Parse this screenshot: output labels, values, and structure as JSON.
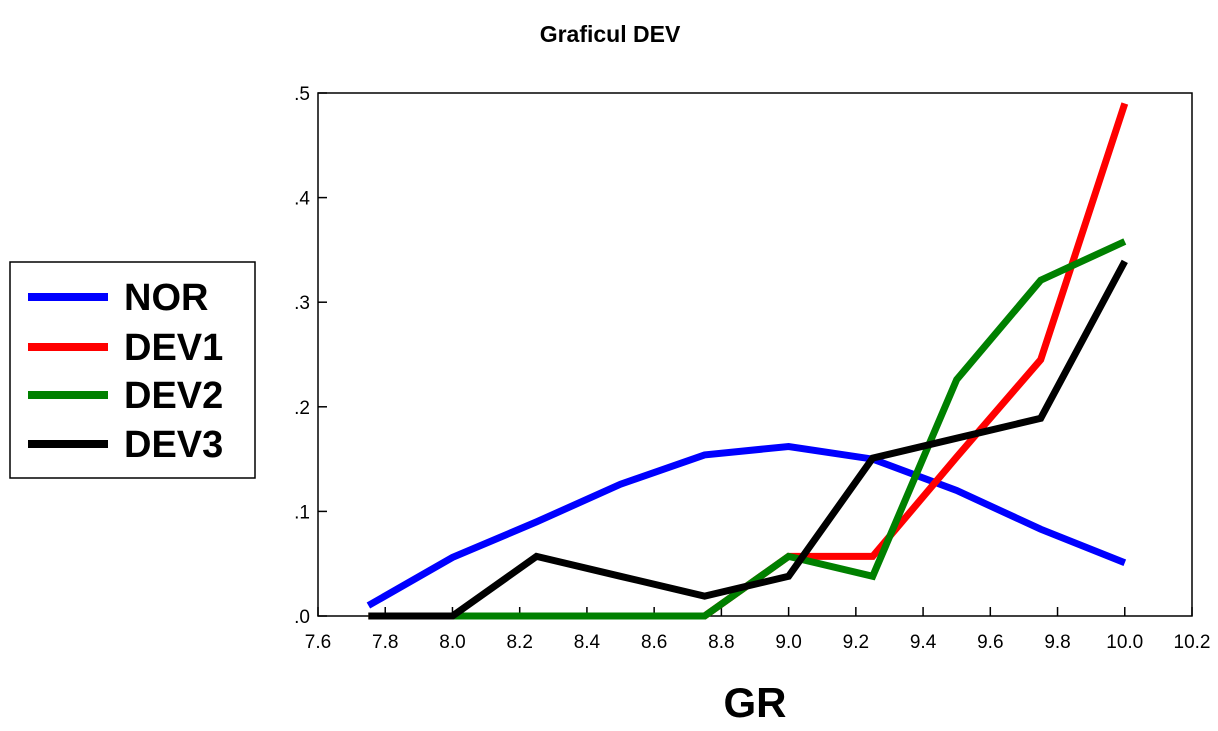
{
  "chart_data": {
    "type": "line",
    "title": "Graficul DEV",
    "xlabel": "GR",
    "ylabel": "",
    "xlim": [
      7.6,
      10.2
    ],
    "ylim": [
      0.0,
      0.5
    ],
    "x_ticks": [
      7.6,
      7.8,
      8.0,
      8.2,
      8.4,
      8.6,
      8.8,
      9.0,
      9.2,
      9.4,
      9.6,
      9.8,
      10.0,
      10.2
    ],
    "x_tick_labels": [
      "7.6",
      "7.8",
      "8.0",
      "8.2",
      "8.4",
      "8.6",
      "8.8",
      "9.0",
      "9.2",
      "9.4",
      "9.6",
      "9.8",
      "10.0",
      "10.2"
    ],
    "y_ticks": [
      0.0,
      0.1,
      0.2,
      0.3,
      0.4,
      0.5
    ],
    "y_tick_labels": [
      ".0",
      ".1",
      ".2",
      ".3",
      ".4",
      ".5"
    ],
    "grid": false,
    "legend_position": "left",
    "x": [
      7.75,
      8.0,
      8.25,
      8.5,
      8.75,
      9.0,
      9.25,
      9.5,
      9.75,
      10.0
    ],
    "series": [
      {
        "name": "NOR",
        "color": "#0000ff",
        "values": [
          0.01,
          0.056,
          0.09,
          0.126,
          0.154,
          0.162,
          0.15,
          0.12,
          0.083,
          0.051
        ]
      },
      {
        "name": "DEV1",
        "color": "#ff0000",
        "values": [
          0.0,
          0.0,
          0.0,
          0.0,
          0.0,
          0.057,
          0.057,
          0.152,
          0.245,
          0.49
        ]
      },
      {
        "name": "DEV2",
        "color": "#008000",
        "values": [
          0.0,
          0.0,
          0.0,
          0.0,
          0.0,
          0.057,
          0.038,
          0.226,
          0.321,
          0.358
        ]
      },
      {
        "name": "DEV3",
        "color": "#000000",
        "values": [
          0.0,
          0.0,
          0.057,
          0.038,
          0.019,
          0.038,
          0.151,
          0.17,
          0.189,
          0.339
        ]
      }
    ]
  }
}
